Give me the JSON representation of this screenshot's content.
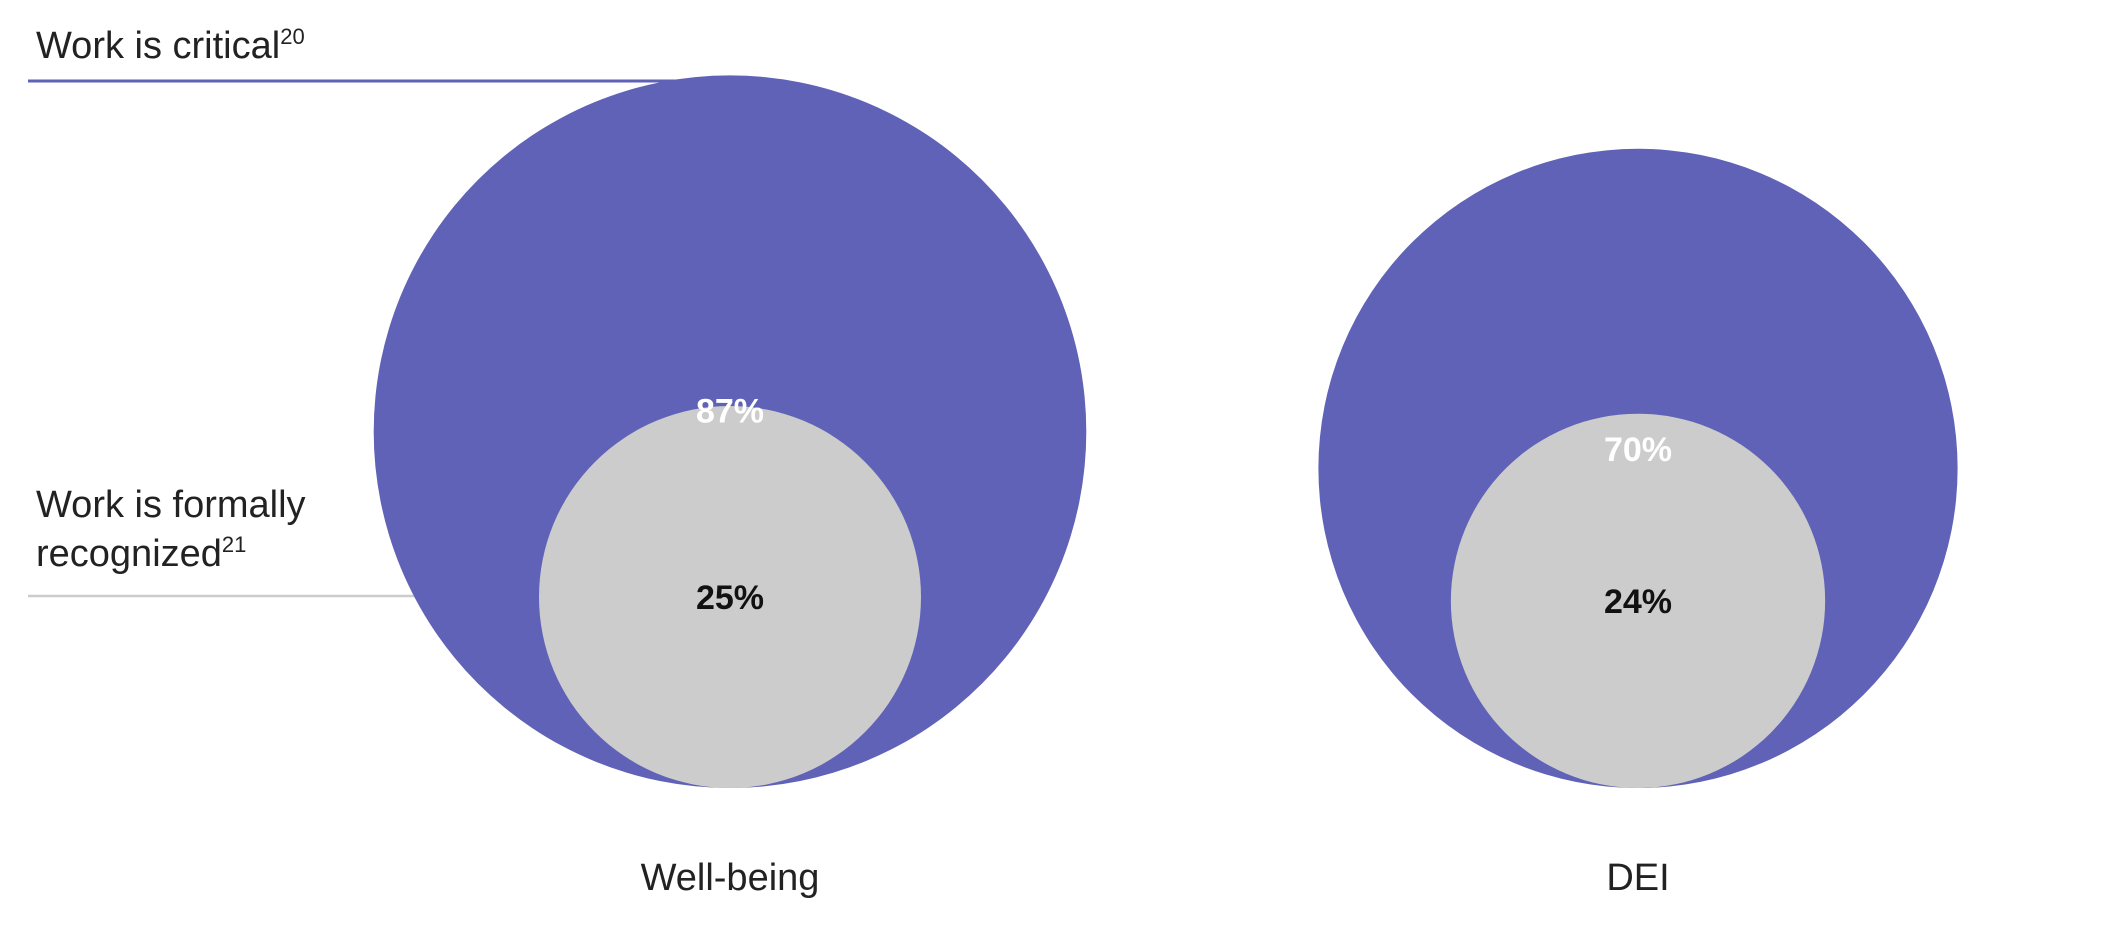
{
  "chart_data": {
    "type": "nested-bubble",
    "title": "",
    "legend": [
      {
        "label": "Work is critical",
        "superscript": "20",
        "color": "#5f62b6"
      },
      {
        "label": "Work is formally recognized",
        "superscript": "21",
        "color": "#cccccc"
      }
    ],
    "categories": [
      "Well-being",
      "DEI"
    ],
    "series": [
      {
        "name": "Work is critical",
        "values": [
          87,
          70
        ]
      },
      {
        "name": "Work is formally recognized",
        "values": [
          25,
          24
        ]
      }
    ],
    "value_labels": {
      "critical": [
        "87%",
        "70%"
      ],
      "recognized": [
        "25%",
        "24%"
      ]
    },
    "colors": {
      "outer": "#5f62b6",
      "inner": "#cccccc",
      "outer_line": "#5f62b6",
      "inner_line": "#cccccc"
    }
  }
}
